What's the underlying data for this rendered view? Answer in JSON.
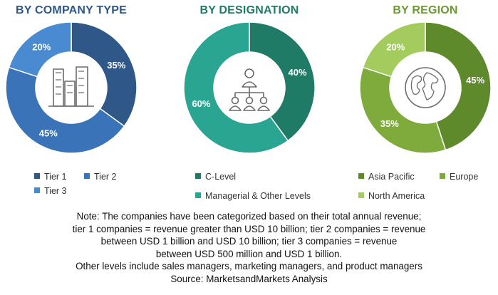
{
  "chart_data": [
    {
      "type": "pie",
      "title": "BY COMPANY TYPE",
      "categories": [
        "Tier 1",
        "Tier 2",
        "Tier 3"
      ],
      "values": [
        35,
        45,
        20
      ],
      "value_labels": [
        "35%",
        "45%",
        "20%"
      ],
      "colors": [
        "#2f5787",
        "#3b73b9",
        "#4a8ad0"
      ],
      "title_color": "#2f5787",
      "center_icon": "buildings-icon"
    },
    {
      "type": "pie",
      "title": "BY DESIGNATION",
      "categories": [
        "C-Level",
        "Managerial & Other Levels"
      ],
      "values": [
        40,
        60
      ],
      "value_labels": [
        "40%",
        "60%"
      ],
      "colors": [
        "#1f7a66",
        "#2aa592"
      ],
      "title_color": "#1f7a66",
      "center_icon": "org-chart-icon"
    },
    {
      "type": "pie",
      "title": "BY REGION",
      "categories": [
        "Asia Pacific",
        "Europe",
        "North America"
      ],
      "values": [
        45,
        35,
        20
      ],
      "value_labels": [
        "45%",
        "35%",
        "20%"
      ],
      "colors": [
        "#5e8a2c",
        "#7fab3c",
        "#a3cb5e"
      ],
      "title_color": "#6a9a30",
      "center_icon": "globe-icon"
    }
  ],
  "note": {
    "lines": [
      "Note: The companies have been categorized based on their total annual revenue;",
      "tier 1 companies = revenue greater than USD 10 billion; tier 2 companies = revenue",
      "between USD 1 billion and USD 10 billion; tier 3 companies = revenue",
      "between USD 500 million and USD 1 billion.",
      "Other levels include sales managers, marketing managers, and product managers",
      "Source: MarketsandMarkets Analysis"
    ]
  }
}
